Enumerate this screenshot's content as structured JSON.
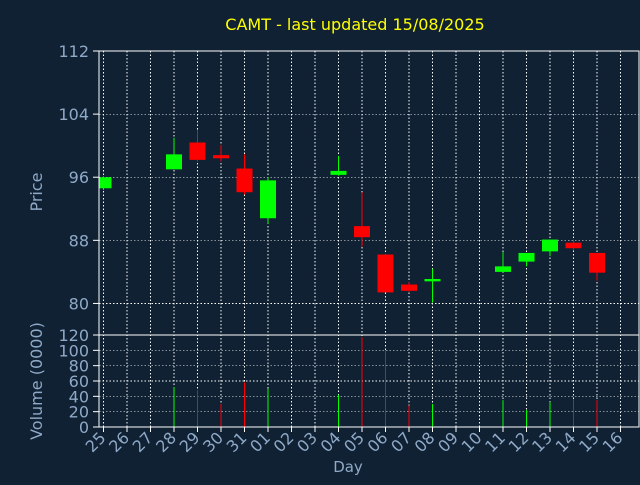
{
  "colors": {
    "background": "#0f2133",
    "title": "#ffff00",
    "axis_text": "#8fa9c7",
    "up": "#00ff00",
    "down": "#ff0000",
    "grid": "#ffffff"
  },
  "chart_data": [
    {
      "type": "candlestick",
      "title": "CAMT - last updated 15/08/2025",
      "ylabel": "Price",
      "ylim": [
        76,
        112
      ],
      "yticks": [
        "80",
        "88",
        "96",
        "104",
        "112"
      ],
      "grid": true,
      "x": [
        "25",
        "26",
        "27",
        "28",
        "29",
        "30",
        "31",
        "01",
        "02",
        "03",
        "04",
        "05",
        "06",
        "07",
        "08",
        "09",
        "10",
        "11",
        "12",
        "13",
        "14",
        "15",
        "16"
      ],
      "candles": [
        {
          "day": "25",
          "open": 94.6,
          "high": 96.1,
          "low": 94.4,
          "close": 96.0
        },
        {
          "day": "28",
          "open": 97.0,
          "high": 101.0,
          "low": 97.0,
          "close": 98.9
        },
        {
          "day": "29",
          "open": 100.4,
          "high": 102.0,
          "low": 98.0,
          "close": 98.2
        },
        {
          "day": "30",
          "open": 98.8,
          "high": 100.1,
          "low": 98.0,
          "close": 98.4
        },
        {
          "day": "31",
          "open": 97.1,
          "high": 98.9,
          "low": 93.8,
          "close": 94.1
        },
        {
          "day": "01",
          "open": 90.8,
          "high": 96.0,
          "low": 90.1,
          "close": 95.6
        },
        {
          "day": "04",
          "open": 96.3,
          "high": 98.7,
          "low": 96.2,
          "close": 96.8
        },
        {
          "day": "05",
          "open": 89.8,
          "high": 94.1,
          "low": 87.2,
          "close": 88.4
        },
        {
          "day": "06",
          "open": 86.2,
          "high": 86.3,
          "low": 81.4,
          "close": 81.4
        },
        {
          "day": "07",
          "open": 82.4,
          "high": 82.7,
          "low": 81.5,
          "close": 81.6
        },
        {
          "day": "08",
          "open": 82.8,
          "high": 84.4,
          "low": 80.1,
          "close": 83.1
        },
        {
          "day": "11",
          "open": 84.0,
          "high": 86.5,
          "low": 83.9,
          "close": 84.7
        },
        {
          "day": "12",
          "open": 85.3,
          "high": 86.4,
          "low": 84.7,
          "close": 86.4
        },
        {
          "day": "13",
          "open": 86.6,
          "high": 88.1,
          "low": 86.0,
          "close": 88.1
        },
        {
          "day": "14",
          "open": 87.7,
          "high": 88.1,
          "low": 86.8,
          "close": 87.0
        },
        {
          "day": "15",
          "open": 86.4,
          "high": 86.4,
          "low": 82.9,
          "close": 83.9
        }
      ]
    },
    {
      "type": "bar",
      "ylabel": "Volume (0000)",
      "xlabel": "Day",
      "ylim": [
        0,
        120
      ],
      "yticks": [
        "0",
        "20",
        "40",
        "60",
        "80",
        "100",
        "120"
      ],
      "grid": true,
      "x": [
        "25",
        "26",
        "27",
        "28",
        "29",
        "30",
        "31",
        "01",
        "02",
        "03",
        "04",
        "05",
        "06",
        "07",
        "08",
        "09",
        "10",
        "11",
        "12",
        "13",
        "14",
        "15",
        "16"
      ],
      "bars": [
        {
          "day": "28",
          "value": 52,
          "direction": "up"
        },
        {
          "day": "29",
          "value": 48,
          "direction": "down"
        },
        {
          "day": "30",
          "value": 30,
          "direction": "down"
        },
        {
          "day": "31",
          "value": 58,
          "direction": "down"
        },
        {
          "day": "01",
          "value": 50,
          "direction": "up"
        },
        {
          "day": "04",
          "value": 42,
          "direction": "up"
        },
        {
          "day": "05",
          "value": 117,
          "direction": "down"
        },
        {
          "day": "06",
          "value": 100,
          "direction": "down"
        },
        {
          "day": "07",
          "value": 28,
          "direction": "down"
        },
        {
          "day": "08",
          "value": 30,
          "direction": "up"
        },
        {
          "day": "11",
          "value": 35,
          "direction": "up"
        },
        {
          "day": "12",
          "value": 22,
          "direction": "up"
        },
        {
          "day": "13",
          "value": 33,
          "direction": "up"
        },
        {
          "day": "14",
          "value": 36,
          "direction": "down"
        },
        {
          "day": "15",
          "value": 35,
          "direction": "down"
        }
      ]
    }
  ]
}
